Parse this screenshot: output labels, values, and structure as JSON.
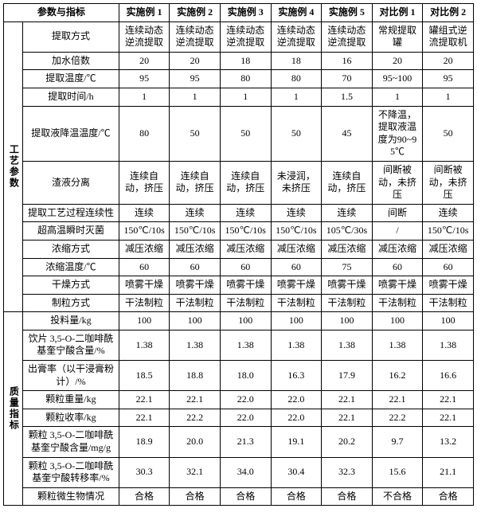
{
  "header": {
    "param_title": "参数与指标",
    "cols": [
      "实施例 1",
      "实施例 2",
      "实施例 3",
      "实施例 4",
      "实施例 5",
      "对比例 1",
      "对比例 2"
    ]
  },
  "sections": [
    {
      "name": "工艺参数",
      "rows": [
        {
          "label": "提取方式",
          "cells": [
            "连续动态逆流提取",
            "连续动态逆流提取",
            "连续动态逆流提取",
            "连续动态逆流提取",
            "连续动态逆流提取",
            "常规提取罐",
            "罐组式逆流提取机"
          ]
        },
        {
          "label": "加水倍数",
          "cells": [
            "20",
            "20",
            "18",
            "18",
            "16",
            "20",
            "20"
          ]
        },
        {
          "label": "提取温度/℃",
          "cells": [
            "95",
            "95",
            "80",
            "80",
            "70",
            "95~100",
            "95"
          ]
        },
        {
          "label": "提取时间/h",
          "cells": [
            "1",
            "1",
            "1",
            "1",
            "1.5",
            "1",
            "1"
          ]
        },
        {
          "label": "提取液降温温度/℃",
          "cells": [
            "80",
            "50",
            "50",
            "50",
            "45",
            "不降温，提取液温度为90~95℃",
            "50"
          ]
        },
        {
          "label": "渣液分离",
          "cells": [
            "连续自动，挤压",
            "连续自动，挤压",
            "连续自动，挤压",
            "未浸润，未挤压",
            "连续自动，挤压",
            "间断被动，未挤压",
            "间断被动，未挤压"
          ]
        },
        {
          "label": "提取工艺过程连续性",
          "cells": [
            "连续",
            "连续",
            "连续",
            "连续",
            "连续",
            "间断",
            "连续"
          ]
        },
        {
          "label": "超高温瞬时灭菌",
          "cells": [
            "150℃/10s",
            "150℃/10s",
            "150℃/10s",
            "150℃/10s",
            "105℃/30s",
            "/",
            "150℃/10s"
          ]
        },
        {
          "label": "浓缩方式",
          "cells": [
            "减压浓缩",
            "减压浓缩",
            "减压浓缩",
            "减压浓缩",
            "减压浓缩",
            "减压浓缩",
            "减压浓缩"
          ]
        },
        {
          "label": "浓缩温度/℃",
          "cells": [
            "60",
            "60",
            "60",
            "60",
            "75",
            "60",
            "60"
          ]
        },
        {
          "label": "干燥方式",
          "cells": [
            "喷雾干燥",
            "喷雾干燥",
            "喷雾干燥",
            "喷雾干燥",
            "喷雾干燥",
            "喷雾干燥",
            "喷雾干燥"
          ]
        },
        {
          "label": "制粒方式",
          "cells": [
            "干法制粒",
            "干法制粒",
            "干法制粒",
            "干法制粒",
            "干法制粒",
            "干法制粒",
            "干法制粒"
          ]
        }
      ]
    },
    {
      "name": "质量指标",
      "rows": [
        {
          "label": "投料量/kg",
          "cells": [
            "100",
            "100",
            "100",
            "100",
            "100",
            "100",
            "100"
          ]
        },
        {
          "label": "饮片 3,5-O-二咖啡酰基奎宁酸含量/%",
          "cells": [
            "1.38",
            "1.38",
            "1.38",
            "1.38",
            "1.38",
            "1.38",
            "1.38"
          ]
        },
        {
          "label": "出膏率（以干浸膏粉计）/%",
          "cells": [
            "18.5",
            "18.8",
            "18.0",
            "16.3",
            "17.9",
            "16.2",
            "16.6"
          ]
        },
        {
          "label": "颗粒重量/kg",
          "cells": [
            "22.1",
            "22.1",
            "22.0",
            "22.0",
            "22.1",
            "22.1",
            "22.1"
          ]
        },
        {
          "label": "颗粒收率/kg",
          "cells": [
            "22.1",
            "22.2",
            "22.0",
            "22.0",
            "22.1",
            "22.2",
            "22.1"
          ]
        },
        {
          "label": "颗粒 3,5-O-二咖啡酰基奎宁酸含量/mg/g",
          "cells": [
            "18.9",
            "20.0",
            "21.3",
            "19.1",
            "20.2",
            "9.7",
            "13.2"
          ]
        },
        {
          "label": "颗粒 3,5-O-二咖啡酰基奎宁酸转移率/%",
          "cells": [
            "30.3",
            "32.1",
            "34.0",
            "30.4",
            "32.3",
            "15.6",
            "21.1"
          ]
        },
        {
          "label": "颗粒微生物情况",
          "cells": [
            "合格",
            "合格",
            "合格",
            "合格",
            "合格",
            "不合格",
            "合格"
          ]
        }
      ]
    }
  ],
  "style": {
    "font_size_pt": 9,
    "border_color": "#000000",
    "background_color": "#ffffff",
    "text_color": "#000000"
  }
}
